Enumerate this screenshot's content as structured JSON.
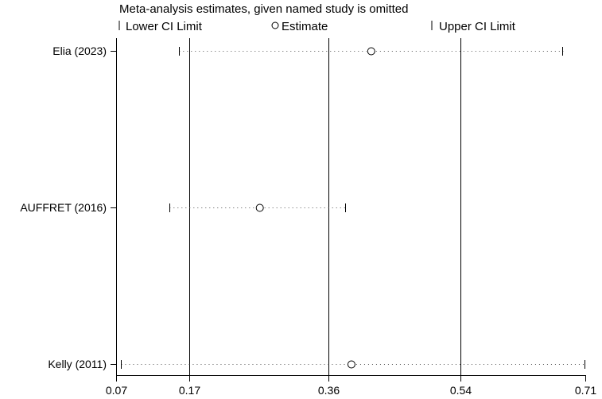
{
  "chart_data": {
    "type": "scatter",
    "title": "Meta-analysis estimates, given named study is omitted",
    "xlabel": "",
    "ylabel": "",
    "xlim": [
      0.07,
      0.71
    ],
    "x_ticks": [
      0.07,
      0.17,
      0.36,
      0.54,
      0.71
    ],
    "x_tick_labels": [
      "0.07",
      "0.17",
      "0.36",
      "0.54",
      "0.71"
    ],
    "reference_lines": [
      0.17,
      0.36,
      0.54
    ],
    "legend": {
      "placement": "top",
      "items": [
        {
          "marker": "tick",
          "label": "Lower CI Limit"
        },
        {
          "marker": "circle",
          "label": "Estimate"
        },
        {
          "marker": "tick",
          "label": "Upper CI Limit"
        }
      ]
    },
    "studies": [
      {
        "label": "Elia (2023)",
        "lower": 0.156,
        "estimate": 0.418,
        "upper": 0.68
      },
      {
        "label": "AUFFRET (2016)",
        "lower": 0.143,
        "estimate": 0.266,
        "upper": 0.383
      },
      {
        "label": "Kelly (2011)",
        "lower": 0.077,
        "estimate": 0.391,
        "upper": 0.71
      }
    ],
    "colors": {
      "lines": "#000000",
      "dots": "#555555"
    }
  }
}
